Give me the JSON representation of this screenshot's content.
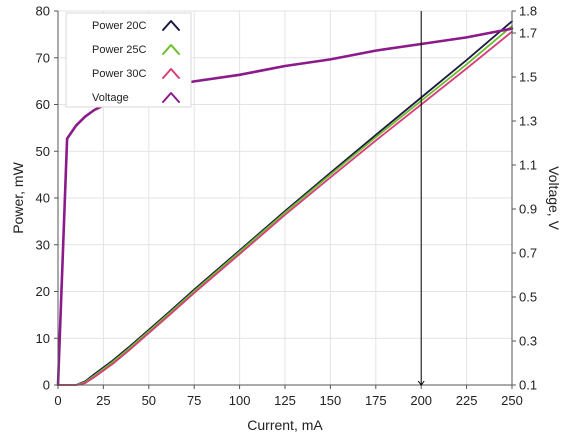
{
  "chart_data": {
    "type": "line",
    "xlabel": "Current, mA",
    "ylabel": "Power, mW",
    "y2label": "Voltage, V",
    "xlim": [
      0,
      250
    ],
    "ylim": [
      0,
      80
    ],
    "y2lim": [
      0.1,
      1.8
    ],
    "x_ticks": [
      0,
      25,
      50,
      75,
      100,
      125,
      150,
      175,
      200,
      225,
      250
    ],
    "y_ticks": [
      0,
      10,
      20,
      30,
      40,
      50,
      60,
      70,
      80
    ],
    "y2_ticks": [
      0.1,
      0.3,
      0.5,
      0.7,
      0.9,
      1.1,
      1.3,
      1.5,
      1.7,
      1.8
    ],
    "grid": true,
    "legend_position": "top-left",
    "marker_line_x": 200,
    "series": [
      {
        "name": "Power 20C",
        "axis": "left",
        "color": "#1a1a40",
        "x": [
          0,
          10,
          15,
          20,
          30,
          40,
          50,
          60,
          75,
          100,
          125,
          150,
          175,
          200,
          225,
          250
        ],
        "y": [
          0,
          0,
          0.8,
          2.3,
          5.2,
          8.4,
          11.8,
          15.2,
          20.4,
          28.8,
          37.2,
          45.4,
          53.5,
          61.5,
          69.5,
          77.8
        ]
      },
      {
        "name": "Power 25C",
        "axis": "left",
        "color": "#6cbd2b",
        "x": [
          0,
          10,
          15,
          20,
          30,
          40,
          50,
          60,
          75,
          100,
          125,
          150,
          175,
          200,
          225,
          250
        ],
        "y": [
          0,
          0,
          0.6,
          2.0,
          4.9,
          8.1,
          11.5,
          14.9,
          20.1,
          28.5,
          36.9,
          45.0,
          53.0,
          60.8,
          68.6,
          76.8
        ]
      },
      {
        "name": "Power 30C",
        "axis": "left",
        "color": "#d83d7a",
        "x": [
          0,
          10,
          15,
          20,
          30,
          40,
          50,
          60,
          75,
          100,
          125,
          150,
          175,
          200,
          225,
          250
        ],
        "y": [
          0,
          0,
          0.4,
          1.7,
          4.5,
          7.7,
          11.1,
          14.5,
          19.7,
          28.0,
          36.4,
          44.4,
          52.3,
          60.0,
          67.7,
          75.6
        ]
      },
      {
        "name": "Voltage",
        "axis": "right",
        "color": "#8b1a8b",
        "x": [
          0,
          5,
          10,
          15,
          20,
          25,
          30,
          40,
          50,
          75,
          100,
          125,
          150,
          175,
          200,
          225,
          250
        ],
        "y": [
          0.1,
          1.22,
          1.28,
          1.32,
          1.35,
          1.37,
          1.39,
          1.42,
          1.44,
          1.48,
          1.51,
          1.55,
          1.58,
          1.62,
          1.65,
          1.68,
          1.72
        ]
      }
    ]
  }
}
